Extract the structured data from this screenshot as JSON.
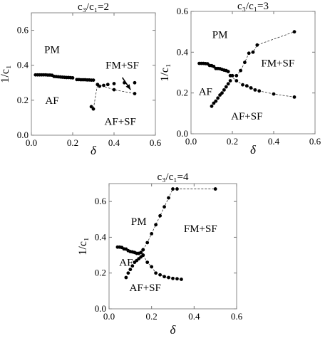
{
  "chart_data": [
    {
      "type": "scatter",
      "title": "c₃/c₁=2",
      "xlabel": "δ",
      "ylabel": "1/c₁",
      "xlim": [
        0,
        0.6
      ],
      "ylim": [
        0,
        0.7
      ],
      "xticks": [
        "0.0",
        "0.2",
        "0.4",
        "0.6"
      ],
      "yticks": [
        "0.0",
        "0.2",
        "0.4",
        "0.6"
      ],
      "xtick_values": [
        0,
        0.2,
        0.4,
        0.6
      ],
      "ytick_values": [
        0,
        0.2,
        0.4,
        0.6
      ],
      "grid": false,
      "regions": [
        {
          "label": "PM",
          "x": 0.1,
          "y": 0.47
        },
        {
          "label": "AF",
          "x": 0.1,
          "y": 0.18
        },
        {
          "label": "FM+SF",
          "x": 0.44,
          "y": 0.38
        },
        {
          "label": "AF+SF",
          "x": 0.43,
          "y": 0.06
        }
      ],
      "arrow": {
        "from": [
          0.44,
          0.33
        ],
        "to": [
          0.48,
          0.26
        ]
      },
      "series": [
        {
          "style": "dots",
          "x": [
            0.02,
            0.03,
            0.04,
            0.05,
            0.06,
            0.07,
            0.08,
            0.09,
            0.1,
            0.11,
            0.12,
            0.13,
            0.14,
            0.15,
            0.16,
            0.17,
            0.18,
            0.19,
            0.2,
            0.22,
            0.23,
            0.24,
            0.25,
            0.26,
            0.27,
            0.28,
            0.29,
            0.3
          ],
          "y": [
            0.345,
            0.345,
            0.345,
            0.345,
            0.345,
            0.345,
            0.344,
            0.344,
            0.343,
            0.336,
            0.335,
            0.334,
            0.333,
            0.332,
            0.331,
            0.33,
            0.33,
            0.329,
            0.328,
            0.318,
            0.318,
            0.317,
            0.317,
            0.317,
            0.316,
            0.316,
            0.315,
            0.315
          ]
        },
        {
          "style": "dots",
          "x": [
            0.33,
            0.35,
            0.37,
            0.4,
            0.45,
            0.5
          ],
          "y": [
            0.28,
            0.285,
            0.29,
            0.295,
            0.3,
            0.3
          ]
        },
        {
          "style": "dashed",
          "x": [
            0.29,
            0.3,
            0.32,
            0.4,
            0.5
          ],
          "y": [
            0.163,
            0.15,
            0.29,
            0.26,
            0.238
          ]
        }
      ]
    },
    {
      "type": "scatter",
      "title": "c₃/c₁=3",
      "xlabel": "δ",
      "ylabel": "1/c₁",
      "xlim": [
        0,
        0.6
      ],
      "ylim": [
        0,
        0.6
      ],
      "xticks": [
        "0.0",
        "0.2",
        "0.4",
        "0.6"
      ],
      "yticks": [
        "0.0",
        "0.2",
        "0.4",
        "0.6"
      ],
      "xtick_values": [
        0,
        0.2,
        0.4,
        0.6
      ],
      "ytick_values": [
        0,
        0.2,
        0.4,
        0.6
      ],
      "grid": false,
      "regions": [
        {
          "label": "PM",
          "x": 0.14,
          "y": 0.47
        },
        {
          "label": "FM+SF",
          "x": 0.42,
          "y": 0.33
        },
        {
          "label": "AF",
          "x": 0.07,
          "y": 0.19
        },
        {
          "label": "AF+SF",
          "x": 0.27,
          "y": 0.07
        }
      ],
      "series": [
        {
          "style": "dots",
          "x": [
            0.04,
            0.05,
            0.06,
            0.07,
            0.08,
            0.09,
            0.1,
            0.11,
            0.12,
            0.13,
            0.14,
            0.15,
            0.16,
            0.17,
            0.18
          ],
          "y": [
            0.345,
            0.345,
            0.345,
            0.344,
            0.343,
            0.335,
            0.334,
            0.33,
            0.32,
            0.32,
            0.319,
            0.315,
            0.312,
            0.31,
            0.305
          ]
        },
        {
          "style": "dots",
          "x": [
            0.1,
            0.11,
            0.12,
            0.13,
            0.14,
            0.15,
            0.16,
            0.17,
            0.18,
            0.19
          ],
          "y": [
            0.135,
            0.15,
            0.16,
            0.175,
            0.19,
            0.2,
            0.215,
            0.23,
            0.245,
            0.26
          ]
        },
        {
          "style": "dashed",
          "x": [
            0.2,
            0.22,
            0.24,
            0.26,
            0.28,
            0.3,
            0.32,
            0.5
          ],
          "y": [
            0.285,
            0.285,
            0.31,
            0.35,
            0.395,
            0.4,
            0.435,
            0.5
          ]
        },
        {
          "style": "dashed",
          "x": [
            0.19,
            0.22,
            0.25,
            0.27,
            0.29,
            0.31,
            0.33,
            0.4,
            0.5
          ],
          "y": [
            0.285,
            0.26,
            0.24,
            0.235,
            0.225,
            0.215,
            0.21,
            0.195,
            0.18
          ]
        }
      ]
    },
    {
      "type": "scatter",
      "title": "c₃/c₁=4",
      "xlabel": "δ",
      "ylabel": "1/c₁",
      "xlim": [
        0,
        0.6
      ],
      "ylim": [
        0,
        0.7
      ],
      "xticks": [
        "0.0",
        "0.2",
        "0.4",
        "0.6"
      ],
      "yticks": [
        "0.0",
        "0.2",
        "0.4",
        "0.6"
      ],
      "xtick_values": [
        0,
        0.2,
        0.4,
        0.6
      ],
      "ytick_values": [
        0,
        0.2,
        0.4,
        0.6
      ],
      "grid": false,
      "regions": [
        {
          "label": "PM",
          "x": 0.14,
          "y": 0.47
        },
        {
          "label": "FM+SF",
          "x": 0.43,
          "y": 0.43
        },
        {
          "label": "AF",
          "x": 0.08,
          "y": 0.24
        },
        {
          "label": "AF+SF",
          "x": 0.17,
          "y": 0.1
        }
      ],
      "series": [
        {
          "style": "dots",
          "x": [
            0.04,
            0.05,
            0.06,
            0.07,
            0.08,
            0.09,
            0.1,
            0.11,
            0.12,
            0.13,
            0.14,
            0.15,
            0.16
          ],
          "y": [
            0.345,
            0.345,
            0.343,
            0.335,
            0.334,
            0.325,
            0.32,
            0.318,
            0.315,
            0.31,
            0.31,
            0.315,
            0.33
          ]
        },
        {
          "style": "dots",
          "x": [
            0.08,
            0.09,
            0.1,
            0.11,
            0.12,
            0.13,
            0.14,
            0.15,
            0.16
          ],
          "y": [
            0.175,
            0.2,
            0.22,
            0.24,
            0.26,
            0.27,
            0.28,
            0.29,
            0.3
          ]
        },
        {
          "style": "dashed",
          "x": [
            0.16,
            0.18,
            0.2,
            0.22,
            0.24,
            0.26,
            0.28,
            0.3,
            0.32,
            0.5
          ],
          "y": [
            0.33,
            0.37,
            0.42,
            0.47,
            0.52,
            0.57,
            0.62,
            0.67,
            0.67,
            0.67
          ]
        },
        {
          "style": "dashed",
          "x": [
            0.16,
            0.18,
            0.2,
            0.22,
            0.24,
            0.26,
            0.28,
            0.3,
            0.32,
            0.34
          ],
          "y": [
            0.3,
            0.26,
            0.235,
            0.2,
            0.19,
            0.18,
            0.175,
            0.17,
            0.168,
            0.165
          ]
        }
      ]
    }
  ]
}
